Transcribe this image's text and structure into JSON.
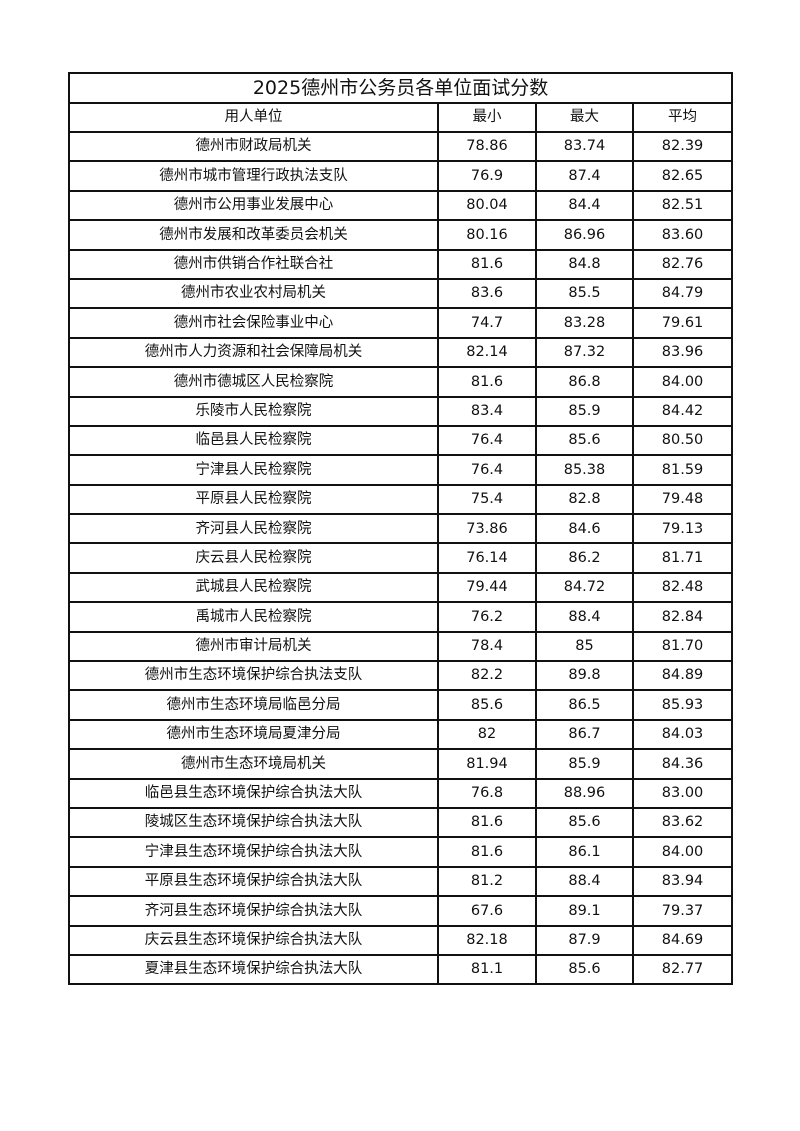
{
  "title": "2025德州市公务员各单位面试分数",
  "headers": {
    "unit": "用人单位",
    "min": "最小",
    "max": "最大",
    "avg": "平均"
  },
  "rows": [
    {
      "unit": "德州市财政局机关",
      "min": "78.86",
      "max": "83.74",
      "avg": "82.39"
    },
    {
      "unit": "德州市城市管理行政执法支队",
      "min": "76.9",
      "max": "87.4",
      "avg": "82.65"
    },
    {
      "unit": "德州市公用事业发展中心",
      "min": "80.04",
      "max": "84.4",
      "avg": "82.51"
    },
    {
      "unit": "德州市发展和改革委员会机关",
      "min": "80.16",
      "max": "86.96",
      "avg": "83.60"
    },
    {
      "unit": "德州市供销合作社联合社",
      "min": "81.6",
      "max": "84.8",
      "avg": "82.76"
    },
    {
      "unit": "德州市农业农村局机关",
      "min": "83.6",
      "max": "85.5",
      "avg": "84.79"
    },
    {
      "unit": "德州市社会保险事业中心",
      "min": "74.7",
      "max": "83.28",
      "avg": "79.61"
    },
    {
      "unit": "德州市人力资源和社会保障局机关",
      "min": "82.14",
      "max": "87.32",
      "avg": "83.96"
    },
    {
      "unit": "德州市德城区人民检察院",
      "min": "81.6",
      "max": "86.8",
      "avg": "84.00"
    },
    {
      "unit": "乐陵市人民检察院",
      "min": "83.4",
      "max": "85.9",
      "avg": "84.42"
    },
    {
      "unit": "临邑县人民检察院",
      "min": "76.4",
      "max": "85.6",
      "avg": "80.50"
    },
    {
      "unit": "宁津县人民检察院",
      "min": "76.4",
      "max": "85.38",
      "avg": "81.59"
    },
    {
      "unit": "平原县人民检察院",
      "min": "75.4",
      "max": "82.8",
      "avg": "79.48"
    },
    {
      "unit": "齐河县人民检察院",
      "min": "73.86",
      "max": "84.6",
      "avg": "79.13"
    },
    {
      "unit": "庆云县人民检察院",
      "min": "76.14",
      "max": "86.2",
      "avg": "81.71"
    },
    {
      "unit": "武城县人民检察院",
      "min": "79.44",
      "max": "84.72",
      "avg": "82.48"
    },
    {
      "unit": "禹城市人民检察院",
      "min": "76.2",
      "max": "88.4",
      "avg": "82.84"
    },
    {
      "unit": "德州市审计局机关",
      "min": "78.4",
      "max": "85",
      "avg": "81.70"
    },
    {
      "unit": "德州市生态环境保护综合执法支队",
      "min": "82.2",
      "max": "89.8",
      "avg": "84.89"
    },
    {
      "unit": "德州市生态环境局临邑分局",
      "min": "85.6",
      "max": "86.5",
      "avg": "85.93"
    },
    {
      "unit": "德州市生态环境局夏津分局",
      "min": "82",
      "max": "86.7",
      "avg": "84.03"
    },
    {
      "unit": "德州市生态环境局机关",
      "min": "81.94",
      "max": "85.9",
      "avg": "84.36"
    },
    {
      "unit": "临邑县生态环境保护综合执法大队",
      "min": "76.8",
      "max": "88.96",
      "avg": "83.00"
    },
    {
      "unit": "陵城区生态环境保护综合执法大队",
      "min": "81.6",
      "max": "85.6",
      "avg": "83.62"
    },
    {
      "unit": "宁津县生态环境保护综合执法大队",
      "min": "81.6",
      "max": "86.1",
      "avg": "84.00"
    },
    {
      "unit": "平原县生态环境保护综合执法大队",
      "min": "81.2",
      "max": "88.4",
      "avg": "83.94"
    },
    {
      "unit": "齐河县生态环境保护综合执法大队",
      "min": "67.6",
      "max": "89.1",
      "avg": "79.37"
    },
    {
      "unit": "庆云县生态环境保护综合执法大队",
      "min": "82.18",
      "max": "87.9",
      "avg": "84.69"
    },
    {
      "unit": "夏津县生态环境保护综合执法大队",
      "min": "81.1",
      "max": "85.6",
      "avg": "82.77"
    }
  ]
}
